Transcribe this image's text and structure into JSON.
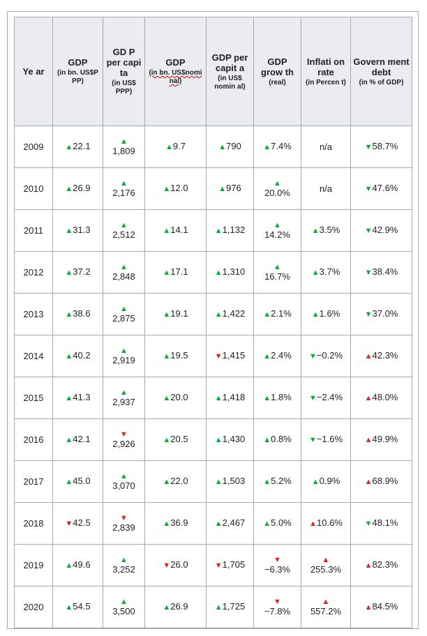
{
  "colors": {
    "up": "#00af33",
    "down": "#dd2020",
    "header_bg": "#eaecf0",
    "border": "#a2a9b1"
  },
  "headers": [
    {
      "title": "Ye ar",
      "sub": ""
    },
    {
      "title": "GDP",
      "sub": "(in bn. US$P PP)"
    },
    {
      "title": "GD P per capi ta",
      "sub": "(in US$ PPP)"
    },
    {
      "title": "GDP",
      "sub": "(in bn. US$nomi nal)"
    },
    {
      "title": "GDP per capit a",
      "sub": "(in US$ nomin al)"
    },
    {
      "title": "GDP grow th",
      "sub": "(real)"
    },
    {
      "title": "Inflati on rate",
      "sub": "(in Percen t)"
    },
    {
      "title": "Govern ment debt",
      "sub": "(in % of GDP)"
    }
  ],
  "rows": [
    {
      "year": "2009",
      "cells": [
        {
          "v": "22.1",
          "t": "up",
          "s": false
        },
        {
          "v": "1,809",
          "t": "up",
          "s": true
        },
        {
          "v": "9.7",
          "t": "up",
          "s": false
        },
        {
          "v": "790",
          "t": "up",
          "s": false
        },
        {
          "v": "7.4%",
          "t": "up",
          "s": false
        },
        {
          "v": "n/a",
          "t": "none",
          "s": false
        },
        {
          "v": "58.7%",
          "t": "down_green",
          "s": false
        }
      ]
    },
    {
      "year": "2010",
      "cells": [
        {
          "v": "26.9",
          "t": "up",
          "s": false
        },
        {
          "v": "2,176",
          "t": "up",
          "s": true
        },
        {
          "v": "12.0",
          "t": "up",
          "s": false
        },
        {
          "v": "976",
          "t": "up",
          "s": false
        },
        {
          "v": "20.0%",
          "t": "up",
          "s": true
        },
        {
          "v": "n/a",
          "t": "none",
          "s": false
        },
        {
          "v": "47.6%",
          "t": "down_green",
          "s": false
        }
      ]
    },
    {
      "year": "2011",
      "cells": [
        {
          "v": "31.3",
          "t": "up",
          "s": false
        },
        {
          "v": "2,512",
          "t": "up",
          "s": true
        },
        {
          "v": "14.1",
          "t": "up",
          "s": false
        },
        {
          "v": "1,132",
          "t": "up",
          "s": false
        },
        {
          "v": "14.2%",
          "t": "up",
          "s": true
        },
        {
          "v": "3.5%",
          "t": "up",
          "s": false
        },
        {
          "v": "42.9%",
          "t": "down_green",
          "s": false
        }
      ]
    },
    {
      "year": "2012",
      "cells": [
        {
          "v": "37.2",
          "t": "up",
          "s": false
        },
        {
          "v": "2,848",
          "t": "up",
          "s": true
        },
        {
          "v": "17.1",
          "t": "up",
          "s": false
        },
        {
          "v": "1,310",
          "t": "up",
          "s": false
        },
        {
          "v": "16.7%",
          "t": "up",
          "s": true
        },
        {
          "v": "3.7%",
          "t": "up",
          "s": false
        },
        {
          "v": "38.4%",
          "t": "down_green",
          "s": false
        }
      ]
    },
    {
      "year": "2013",
      "cells": [
        {
          "v": "38.6",
          "t": "up",
          "s": false
        },
        {
          "v": "2,875",
          "t": "up",
          "s": true
        },
        {
          "v": "19.1",
          "t": "up",
          "s": false
        },
        {
          "v": "1,422",
          "t": "up",
          "s": false
        },
        {
          "v": "2.1%",
          "t": "up",
          "s": false
        },
        {
          "v": "1.6%",
          "t": "up",
          "s": false
        },
        {
          "v": "37.0%",
          "t": "down_green",
          "s": false
        }
      ]
    },
    {
      "year": "2014",
      "cells": [
        {
          "v": "40.2",
          "t": "up",
          "s": false
        },
        {
          "v": "2,919",
          "t": "up",
          "s": true
        },
        {
          "v": "19.5",
          "t": "up",
          "s": false
        },
        {
          "v": "1,415",
          "t": "down",
          "s": false
        },
        {
          "v": "2.4%",
          "t": "up",
          "s": false
        },
        {
          "v": "−0.2%",
          "t": "down_green",
          "s": false
        },
        {
          "v": "42.3%",
          "t": "up_red",
          "s": false
        }
      ]
    },
    {
      "year": "2015",
      "cells": [
        {
          "v": "41.3",
          "t": "up",
          "s": false
        },
        {
          "v": "2,937",
          "t": "up",
          "s": true
        },
        {
          "v": "20.0",
          "t": "up",
          "s": false
        },
        {
          "v": "1,418",
          "t": "up",
          "s": false
        },
        {
          "v": "1.8%",
          "t": "up",
          "s": false
        },
        {
          "v": "−2.4%",
          "t": "down_green",
          "s": false
        },
        {
          "v": "48.0%",
          "t": "up_red",
          "s": false
        }
      ]
    },
    {
      "year": "2016",
      "cells": [
        {
          "v": "42.1",
          "t": "up",
          "s": false
        },
        {
          "v": "2,926",
          "t": "down",
          "s": true
        },
        {
          "v": "20.5",
          "t": "up",
          "s": false
        },
        {
          "v": "1,430",
          "t": "up",
          "s": false
        },
        {
          "v": "0.8%",
          "t": "up",
          "s": false
        },
        {
          "v": "−1.6%",
          "t": "down_green",
          "s": false
        },
        {
          "v": "49.9%",
          "t": "up_red",
          "s": false
        }
      ]
    },
    {
      "year": "2017",
      "cells": [
        {
          "v": "45.0",
          "t": "up",
          "s": false
        },
        {
          "v": "3,070",
          "t": "up",
          "s": true
        },
        {
          "v": "22.0",
          "t": "up",
          "s": false
        },
        {
          "v": "1,503",
          "t": "up",
          "s": false
        },
        {
          "v": "5.2%",
          "t": "up",
          "s": false
        },
        {
          "v": "0.9%",
          "t": "up",
          "s": false
        },
        {
          "v": "68.9%",
          "t": "up_red",
          "s": false
        }
      ]
    },
    {
      "year": "2018",
      "cells": [
        {
          "v": "42.5",
          "t": "down",
          "s": false
        },
        {
          "v": "2,839",
          "t": "down",
          "s": true
        },
        {
          "v": "36.9",
          "t": "up",
          "s": false
        },
        {
          "v": "2,467",
          "t": "up",
          "s": false
        },
        {
          "v": "5.0%",
          "t": "up",
          "s": false
        },
        {
          "v": "10.6%",
          "t": "up_red",
          "s": false
        },
        {
          "v": "48.1%",
          "t": "down_green",
          "s": false
        }
      ]
    },
    {
      "year": "2019",
      "cells": [
        {
          "v": "49.6",
          "t": "up",
          "s": false
        },
        {
          "v": "3,252",
          "t": "up",
          "s": true
        },
        {
          "v": "26.0",
          "t": "down",
          "s": false
        },
        {
          "v": "1,705",
          "t": "down",
          "s": false
        },
        {
          "v": "−6.3%",
          "t": "down",
          "s": true
        },
        {
          "v": "255.3%",
          "t": "up_red",
          "s": true
        },
        {
          "v": "82.3%",
          "t": "up_red",
          "s": false
        }
      ]
    },
    {
      "year": "2020",
      "cells": [
        {
          "v": "54.5",
          "t": "up",
          "s": false
        },
        {
          "v": "3,500",
          "t": "up",
          "s": true
        },
        {
          "v": "26.9",
          "t": "up",
          "s": false
        },
        {
          "v": "1,725",
          "t": "up",
          "s": false
        },
        {
          "v": "−7.8%",
          "t": "down",
          "s": true
        },
        {
          "v": "557.2%",
          "t": "up_red",
          "s": true
        },
        {
          "v": "84.5%",
          "t": "up_red",
          "s": false
        }
      ]
    }
  ]
}
